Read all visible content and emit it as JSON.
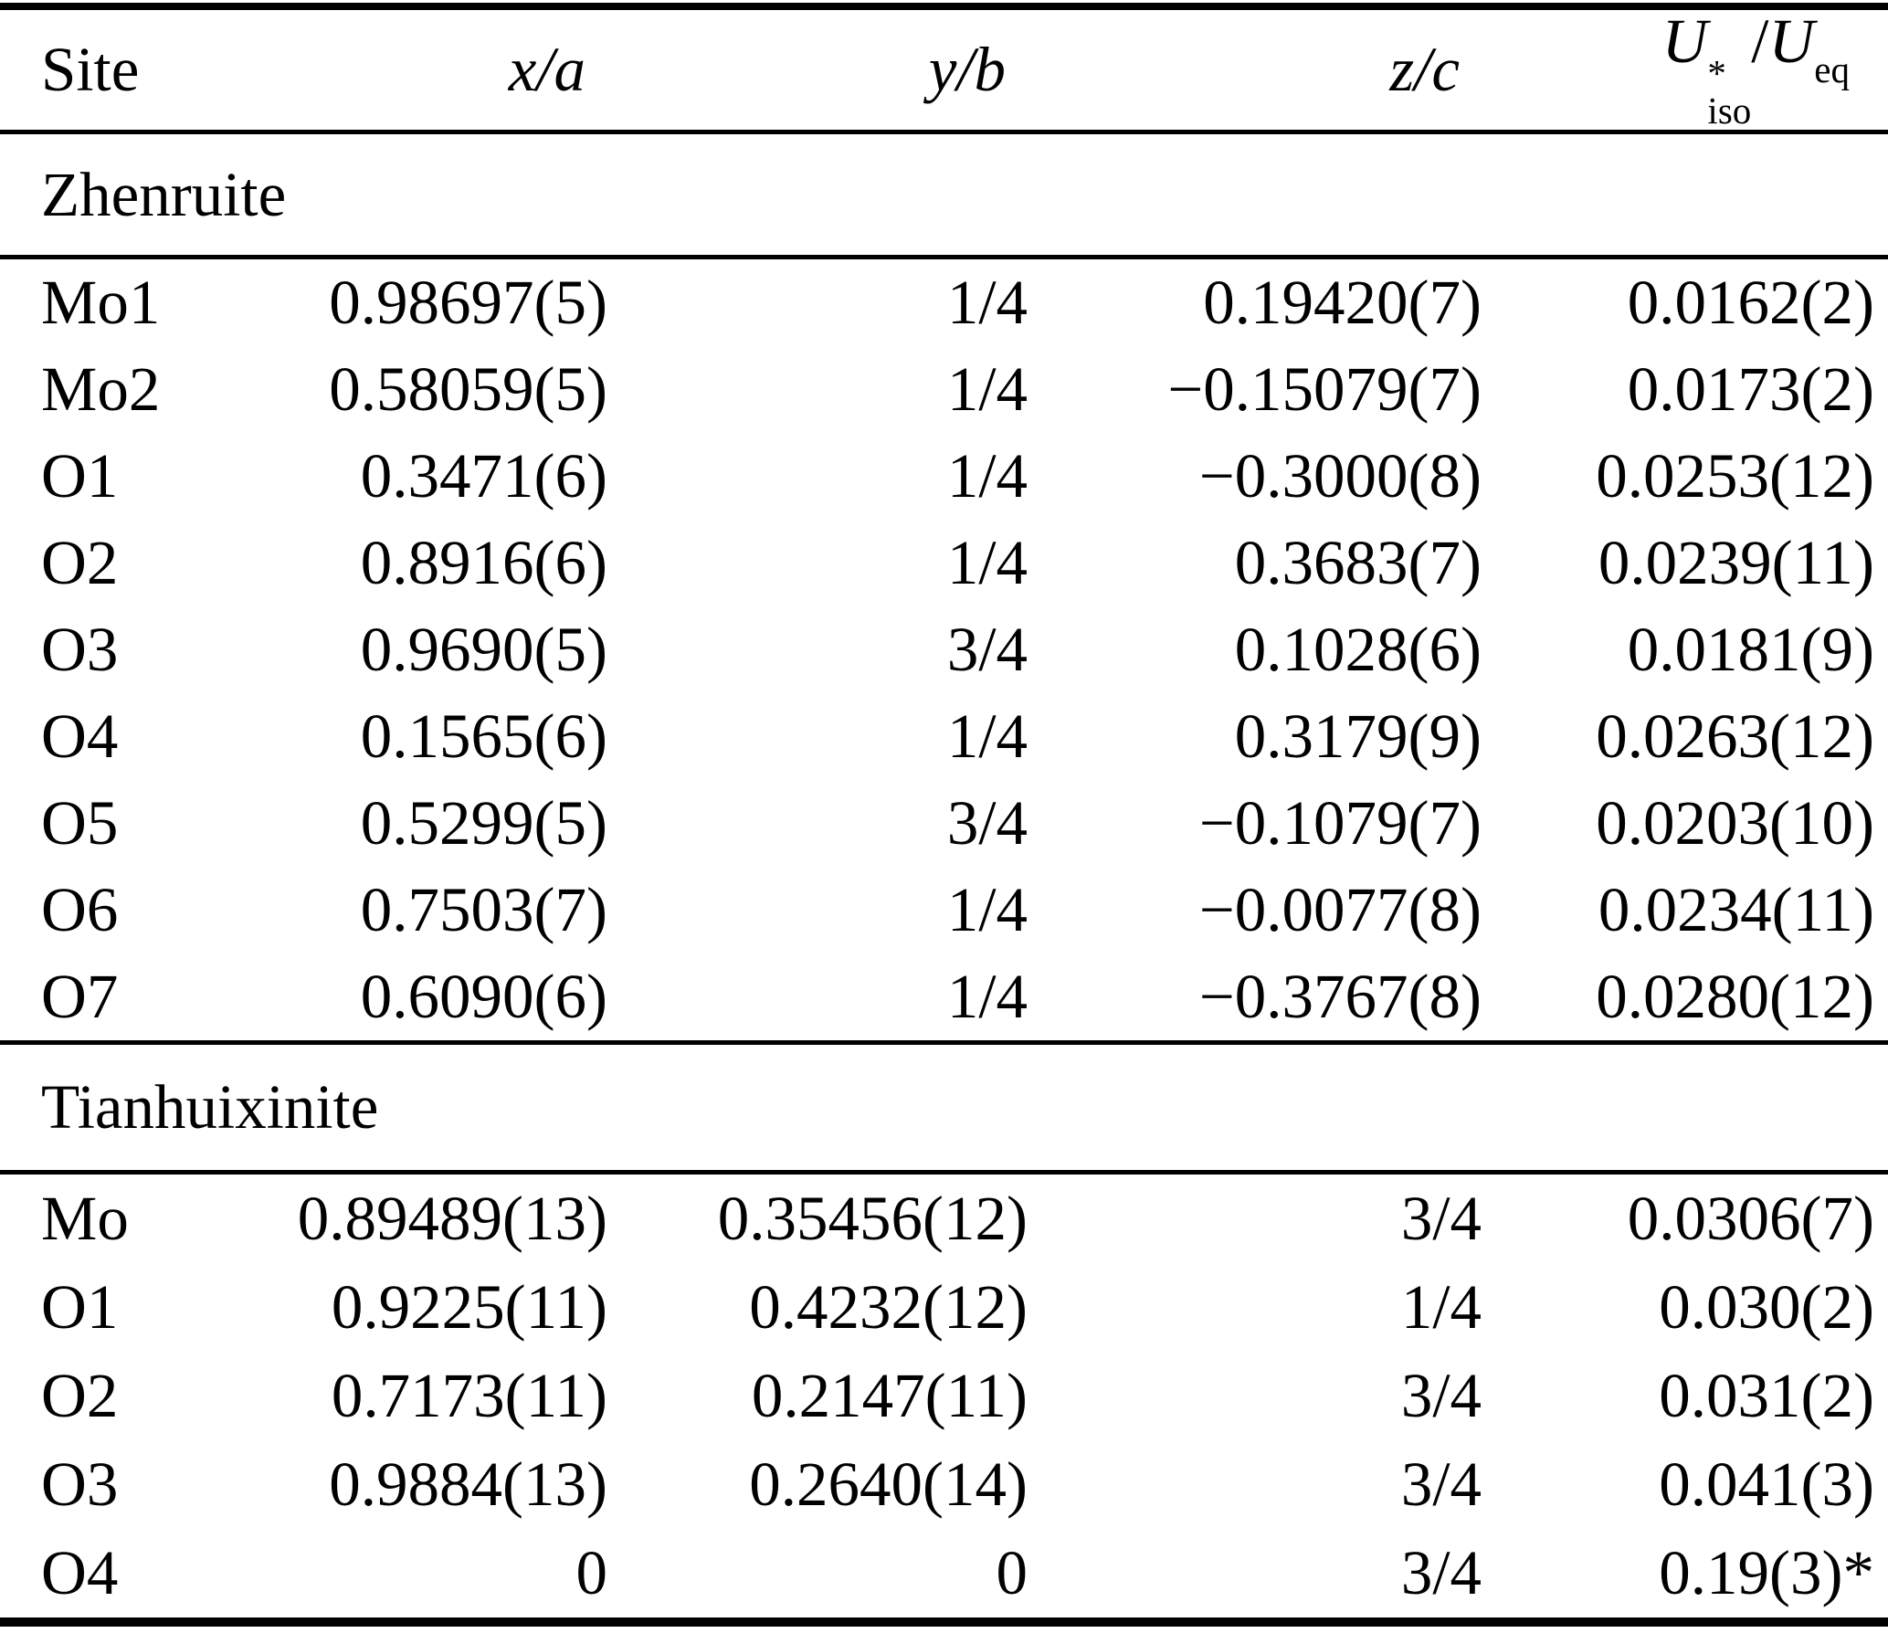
{
  "page": {
    "background_color": "#ffffff",
    "text_color": "#000000"
  },
  "table": {
    "headers": {
      "site": "Site",
      "xa": "x/a",
      "yb": "y/b",
      "zc": "z/c",
      "u": {
        "U": "U",
        "sup": "*",
        "sub": "iso",
        "slash": "/",
        "U2": "U",
        "sub2": "eq"
      }
    },
    "sections": [
      {
        "title": "Zhenruite",
        "rows": [
          {
            "site": "Mo1",
            "xa": "0.98697(5)",
            "yb": "1/4",
            "zc": "0.19420(7)",
            "u": "0.0162(2)"
          },
          {
            "site": "Mo2",
            "xa": "0.58059(5)",
            "yb": "1/4",
            "zc": "−0.15079(7)",
            "u": "0.0173(2)"
          },
          {
            "site": "O1",
            "xa": "0.3471(6)",
            "yb": "1/4",
            "zc": "−0.3000(8)",
            "u": "0.0253(12)"
          },
          {
            "site": "O2",
            "xa": "0.8916(6)",
            "yb": "1/4",
            "zc": "0.3683(7)",
            "u": "0.0239(11)"
          },
          {
            "site": "O3",
            "xa": "0.9690(5)",
            "yb": "3/4",
            "zc": "0.1028(6)",
            "u": "0.0181(9)"
          },
          {
            "site": "O4",
            "xa": "0.1565(6)",
            "yb": "1/4",
            "zc": "0.3179(9)",
            "u": "0.0263(12)"
          },
          {
            "site": "O5",
            "xa": "0.5299(5)",
            "yb": "3/4",
            "zc": "−0.1079(7)",
            "u": "0.0203(10)"
          },
          {
            "site": "O6",
            "xa": "0.7503(7)",
            "yb": "1/4",
            "zc": "−0.0077(8)",
            "u": "0.0234(11)"
          },
          {
            "site": "O7",
            "xa": "0.6090(6)",
            "yb": "1/4",
            "zc": "−0.3767(8)",
            "u": "0.0280(12)"
          }
        ]
      },
      {
        "title": "Tianhuixinite",
        "rows": [
          {
            "site": "Mo",
            "xa": "0.89489(13)",
            "yb": "0.35456(12)",
            "zc": "3/4",
            "u": "0.0306(7)"
          },
          {
            "site": "O1",
            "xa": "0.9225(11)",
            "yb": "0.4232(12)",
            "zc": "1/4",
            "u": "0.030(2)"
          },
          {
            "site": "O2",
            "xa": "0.7173(11)",
            "yb": "0.2147(11)",
            "zc": "3/4",
            "u": "0.031(2)"
          },
          {
            "site": "O3",
            "xa": "0.9884(13)",
            "yb": "0.2640(14)",
            "zc": "3/4",
            "u": "0.041(3)"
          },
          {
            "site": "O4",
            "xa": "0",
            "yb": "0",
            "zc": "3/4",
            "u": "0.19(3)*"
          }
        ]
      }
    ]
  }
}
